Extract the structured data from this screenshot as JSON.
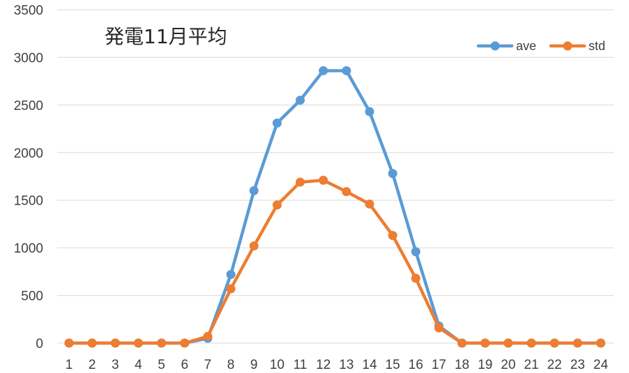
{
  "chart_data": {
    "type": "line",
    "title": "発電11月平均",
    "x": [
      1,
      2,
      3,
      4,
      5,
      6,
      7,
      8,
      9,
      10,
      11,
      12,
      13,
      14,
      15,
      16,
      17,
      18,
      19,
      20,
      21,
      22,
      23,
      24
    ],
    "ylim": [
      0,
      3500
    ],
    "yticks": [
      0,
      500,
      1000,
      1500,
      2000,
      2500,
      3000,
      3500
    ],
    "grid": true,
    "legend_position": "top-right",
    "series": [
      {
        "name": "ave",
        "color": "#5B9BD5",
        "values": [
          0,
          0,
          0,
          0,
          0,
          0,
          50,
          720,
          1600,
          2310,
          2550,
          2860,
          2860,
          2430,
          1780,
          960,
          180,
          0,
          0,
          0,
          0,
          0,
          0,
          0
        ]
      },
      {
        "name": "std",
        "color": "#ED7D31",
        "values": [
          0,
          0,
          0,
          0,
          0,
          0,
          70,
          570,
          1020,
          1450,
          1690,
          1710,
          1590,
          1460,
          1130,
          680,
          160,
          0,
          0,
          0,
          0,
          0,
          0,
          0
        ]
      }
    ]
  }
}
